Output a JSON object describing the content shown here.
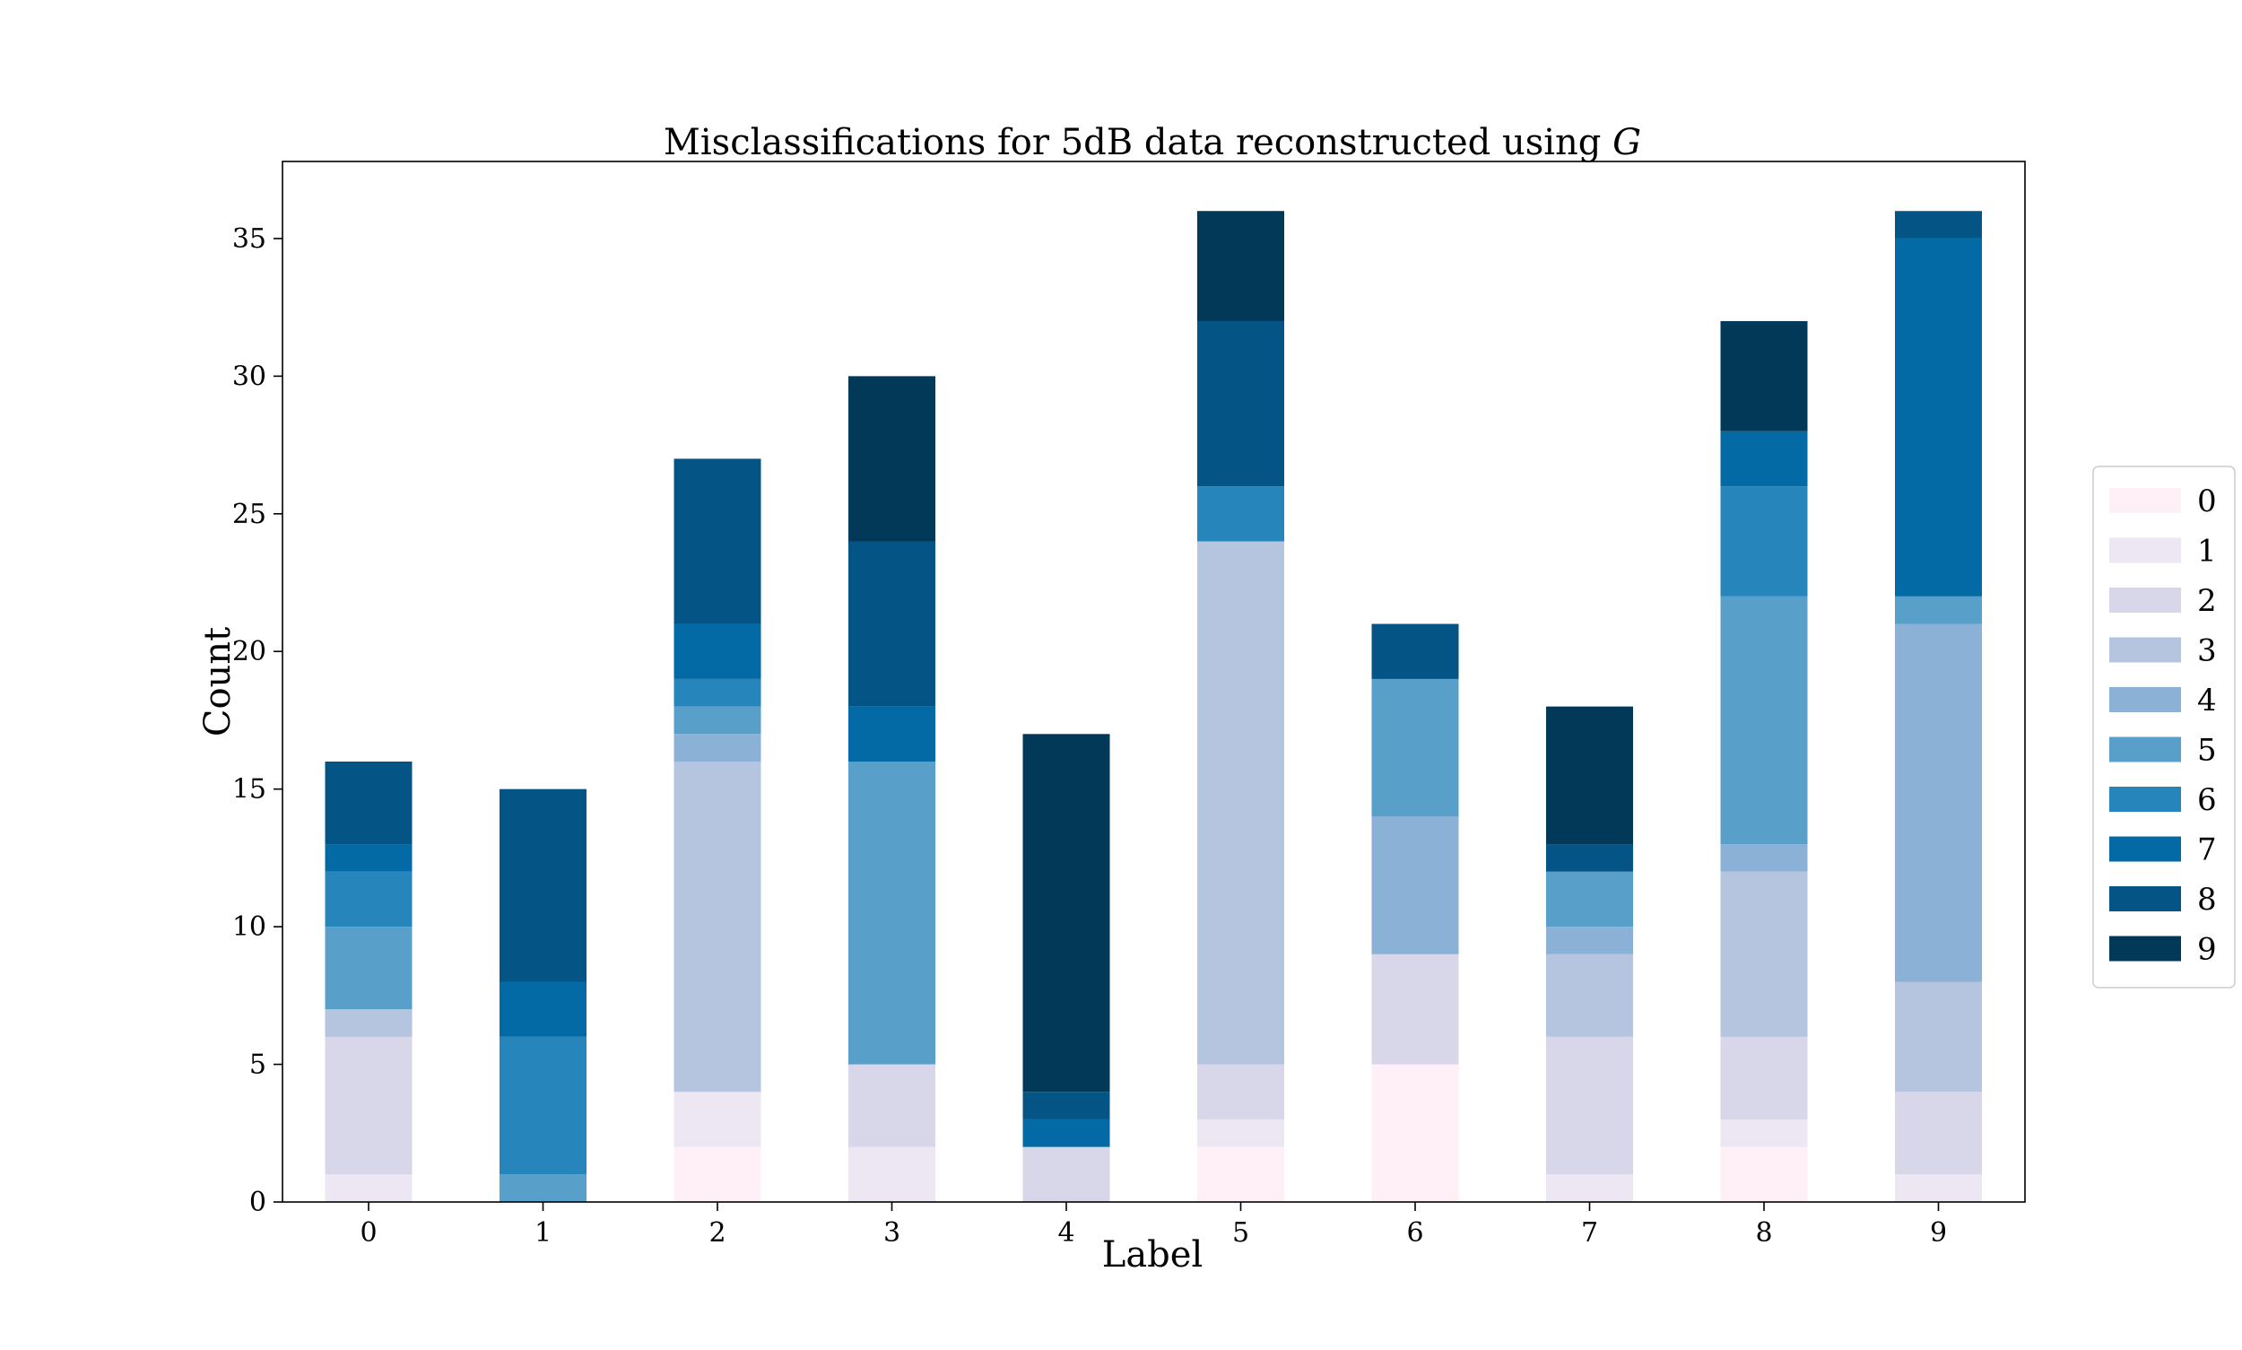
{
  "chart_data": {
    "type": "bar",
    "stacked": true,
    "title": "Misclassifications for 5dB data reconstructed using",
    "title_italic": "G",
    "xlabel": "Label",
    "ylabel": "Count",
    "ylim": [
      0,
      37.8
    ],
    "yticks": [
      0,
      5,
      10,
      15,
      20,
      25,
      30,
      35
    ],
    "categories": [
      "0",
      "1",
      "2",
      "3",
      "4",
      "5",
      "6",
      "7",
      "8",
      "9"
    ],
    "grid": false,
    "legend_position": "right",
    "series": [
      {
        "name": "0",
        "color": "#fff0f7",
        "values": [
          0,
          0,
          2,
          0,
          0,
          2,
          5,
          0,
          2,
          0
        ]
      },
      {
        "name": "1",
        "color": "#ece7f2",
        "values": [
          1,
          0,
          2,
          2,
          0,
          1,
          0,
          1,
          1,
          1
        ]
      },
      {
        "name": "2",
        "color": "#d8d7e9",
        "values": [
          5,
          0,
          0,
          3,
          2,
          2,
          4,
          5,
          3,
          3
        ]
      },
      {
        "name": "3",
        "color": "#b5c4df",
        "values": [
          1,
          0,
          12,
          0,
          0,
          19,
          0,
          3,
          6,
          4
        ]
      },
      {
        "name": "4",
        "color": "#8bb2d6",
        "values": [
          0,
          0,
          1,
          0,
          0,
          0,
          5,
          1,
          1,
          13
        ]
      },
      {
        "name": "5",
        "color": "#589fca",
        "values": [
          3,
          1,
          1,
          11,
          0,
          0,
          5,
          2,
          9,
          1
        ]
      },
      {
        "name": "6",
        "color": "#2685bb",
        "values": [
          2,
          5,
          1,
          0,
          0,
          2,
          0,
          0,
          4,
          0
        ]
      },
      {
        "name": "7",
        "color": "#046aa6",
        "values": [
          1,
          2,
          2,
          2,
          1,
          0,
          0,
          0,
          2,
          13
        ]
      },
      {
        "name": "8",
        "color": "#045586",
        "values": [
          3,
          7,
          6,
          6,
          1,
          6,
          2,
          1,
          0,
          1
        ]
      },
      {
        "name": "9",
        "color": "#023858",
        "values": [
          0,
          0,
          0,
          6,
          13,
          4,
          0,
          5,
          4,
          0
        ]
      }
    ]
  }
}
